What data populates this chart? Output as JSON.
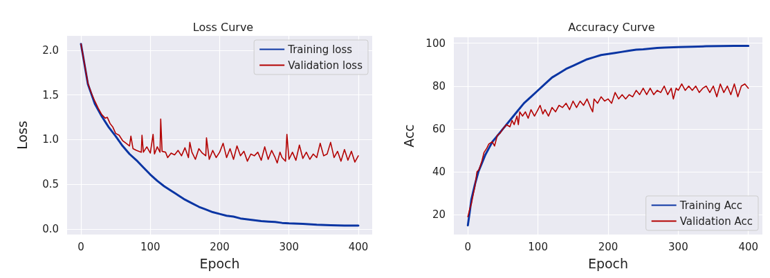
{
  "chart_data": [
    {
      "type": "line",
      "title": "Loss Curve",
      "xlabel": "Epoch",
      "ylabel": "Loss",
      "xlim": [
        -20,
        420
      ],
      "xticks": [
        0,
        100,
        200,
        300,
        400
      ],
      "ylim": [
        -0.06,
        2.16
      ],
      "yticks": [
        {
          "value": 0,
          "label": "0.0"
        },
        {
          "value": 0.5,
          "label": "0.5"
        },
        {
          "value": 1,
          "label": "1.0"
        },
        {
          "value": 1.5,
          "label": "1.5"
        },
        {
          "value": 2,
          "label": "2.0"
        }
      ],
      "grid": true,
      "legend": "top right",
      "marker": "none",
      "line_style": "solid",
      "series": [
        {
          "name": "Training loss",
          "color": "#0a35a3",
          "x": [
            0,
            10,
            20,
            30,
            40,
            50,
            60,
            70,
            80,
            90,
            100,
            110,
            120,
            130,
            140,
            150,
            160,
            170,
            180,
            190,
            200,
            210,
            220,
            230,
            240,
            250,
            260,
            270,
            280,
            290,
            300,
            320,
            340,
            360,
            380,
            400
          ],
          "values": [
            2.07,
            1.62,
            1.4,
            1.26,
            1.14,
            1.04,
            0.93,
            0.84,
            0.77,
            0.69,
            0.61,
            0.54,
            0.48,
            0.43,
            0.38,
            0.33,
            0.29,
            0.25,
            0.22,
            0.19,
            0.17,
            0.15,
            0.14,
            0.12,
            0.11,
            0.1,
            0.09,
            0.085,
            0.08,
            0.07,
            0.065,
            0.06,
            0.05,
            0.045,
            0.04,
            0.04
          ]
        },
        {
          "name": "Validation loss",
          "color": "#b30000",
          "x": [
            0,
            5,
            10,
            15,
            20,
            25,
            30,
            35,
            38,
            42,
            46,
            50,
            55,
            60,
            65,
            70,
            72,
            75,
            80,
            87,
            88,
            90,
            95,
            100,
            104,
            106,
            110,
            114,
            115,
            117,
            122,
            125,
            130,
            135,
            140,
            145,
            150,
            155,
            157,
            160,
            165,
            170,
            175,
            180,
            181,
            185,
            190,
            195,
            200,
            205,
            210,
            215,
            220,
            225,
            230,
            235,
            240,
            245,
            250,
            255,
            260,
            265,
            270,
            275,
            280,
            283,
            287,
            290,
            295,
            297,
            300,
            305,
            310,
            315,
            320,
            325,
            330,
            335,
            340,
            345,
            350,
            355,
            360,
            365,
            370,
            375,
            380,
            385,
            390,
            395,
            400
          ],
          "values": [
            2.07,
            1.85,
            1.63,
            1.52,
            1.43,
            1.35,
            1.28,
            1.24,
            1.25,
            1.18,
            1.14,
            1.07,
            1.05,
            0.99,
            0.96,
            0.93,
            1.04,
            0.9,
            0.88,
            0.86,
            1.05,
            0.86,
            0.92,
            0.85,
            1.06,
            0.84,
            0.92,
            0.86,
            1.23,
            0.87,
            0.86,
            0.8,
            0.85,
            0.83,
            0.88,
            0.82,
            0.91,
            0.8,
            0.97,
            0.86,
            0.78,
            0.9,
            0.85,
            0.82,
            1.02,
            0.78,
            0.88,
            0.8,
            0.86,
            0.96,
            0.8,
            0.9,
            0.78,
            0.93,
            0.82,
            0.87,
            0.76,
            0.84,
            0.82,
            0.86,
            0.77,
            0.92,
            0.78,
            0.88,
            0.8,
            0.74,
            0.86,
            0.8,
            0.76,
            1.06,
            0.78,
            0.86,
            0.77,
            0.94,
            0.79,
            0.86,
            0.78,
            0.84,
            0.8,
            0.96,
            0.82,
            0.84,
            0.97,
            0.8,
            0.87,
            0.76,
            0.89,
            0.77,
            0.87,
            0.75,
            0.82
          ]
        }
      ]
    },
    {
      "type": "line",
      "title": "Accuracy Curve",
      "xlabel": "Epoch",
      "ylabel": "Acc",
      "xlim": [
        -20,
        420
      ],
      "xticks": [
        0,
        100,
        200,
        300,
        400
      ],
      "ylim": [
        10.7,
        102.8
      ],
      "yticks": [
        20,
        40,
        60,
        80,
        100
      ],
      "grid": true,
      "legend": "bottom right",
      "marker": "none",
      "line_style": "solid",
      "series": [
        {
          "name": "Training Acc",
          "color": "#0a35a3",
          "x": [
            0,
            3,
            5,
            10,
            15,
            20,
            25,
            30,
            35,
            40,
            50,
            60,
            70,
            80,
            90,
            100,
            110,
            120,
            130,
            140,
            150,
            160,
            170,
            180,
            190,
            200,
            210,
            220,
            230,
            240,
            250,
            260,
            270,
            280,
            300,
            320,
            340,
            360,
            380,
            400
          ],
          "values": [
            15,
            22,
            27,
            34,
            40,
            44,
            48,
            51,
            54,
            56,
            60,
            64,
            68,
            72,
            75,
            78,
            81,
            84,
            86,
            88,
            89.5,
            91,
            92.5,
            93.5,
            94.5,
            95,
            95.5,
            96,
            96.5,
            97,
            97.2,
            97.5,
            97.8,
            98,
            98.2,
            98.4,
            98.6,
            98.7,
            98.8,
            98.8
          ]
        },
        {
          "name": "Validation Acc",
          "color": "#b30000",
          "x": [
            0,
            3,
            5,
            8,
            10,
            13,
            16,
            20,
            23,
            27,
            30,
            35,
            38,
            42,
            46,
            50,
            55,
            60,
            63,
            66,
            70,
            72,
            74,
            78,
            82,
            86,
            90,
            95,
            100,
            103,
            107,
            110,
            115,
            120,
            125,
            130,
            135,
            140,
            145,
            150,
            155,
            160,
            165,
            170,
            175,
            178,
            180,
            185,
            190,
            195,
            200,
            205,
            210,
            215,
            220,
            225,
            230,
            235,
            240,
            245,
            250,
            255,
            260,
            265,
            270,
            275,
            280,
            285,
            290,
            293,
            297,
            300,
            305,
            310,
            315,
            320,
            325,
            330,
            335,
            340,
            345,
            350,
            355,
            360,
            365,
            370,
            375,
            380,
            385,
            390,
            395,
            400
          ],
          "values": [
            19,
            23,
            25,
            30,
            33,
            40,
            41,
            45,
            49,
            51,
            53,
            54,
            52,
            57,
            58,
            60,
            62,
            61,
            64,
            62,
            66,
            62,
            68,
            66,
            68,
            65,
            69,
            66,
            69,
            71,
            67,
            69,
            66,
            70,
            68,
            71,
            70,
            72,
            69,
            73,
            70,
            73,
            71,
            74,
            70,
            68,
            74,
            72,
            75,
            73,
            74,
            72,
            77,
            74,
            76,
            74,
            76,
            75,
            78,
            76,
            79,
            76,
            79,
            76,
            78,
            77,
            80,
            76,
            79,
            74,
            79,
            78,
            81,
            78,
            80,
            78,
            80,
            77,
            79,
            80,
            77,
            80,
            75,
            81,
            77,
            80,
            76,
            81,
            75,
            80,
            81,
            79
          ]
        }
      ]
    }
  ]
}
